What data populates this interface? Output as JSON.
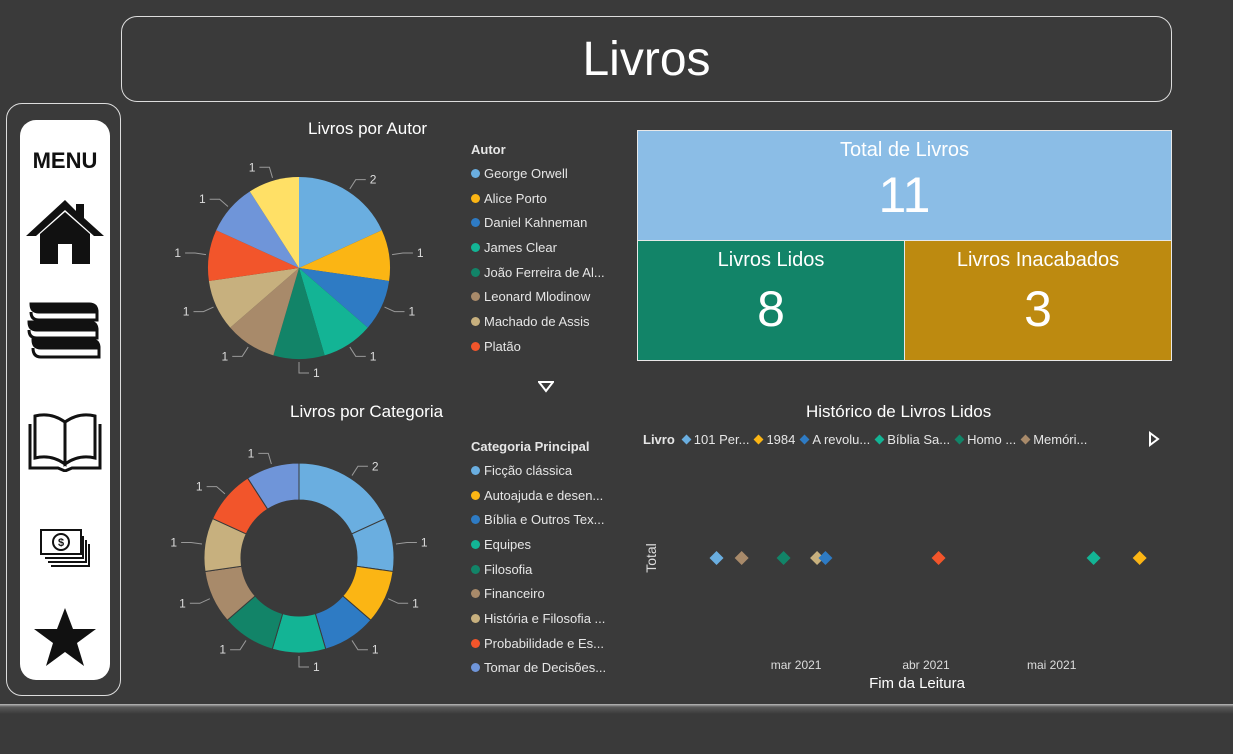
{
  "header": {
    "title": "Livros"
  },
  "menu": {
    "label": "MENU",
    "icons": [
      "home-icon",
      "books-stack-icon",
      "open-book-icon",
      "money-icon",
      "star-icon"
    ]
  },
  "pie_author": {
    "title": "Livros por Autor",
    "legend_title": "Autor",
    "legend_items": [
      {
        "label": "George Orwell",
        "color": "#6aaee0"
      },
      {
        "label": "Alice Porto",
        "color": "#fbb514"
      },
      {
        "label": "Daniel Kahneman",
        "color": "#2e7bc4"
      },
      {
        "label": "James Clear",
        "color": "#13b495"
      },
      {
        "label": "João Ferreira de Al...",
        "color": "#128468"
      },
      {
        "label": "Leonard Mlodinow",
        "color": "#a88a6a"
      },
      {
        "label": "Machado de Assis",
        "color": "#c7b07e"
      },
      {
        "label": "Platão",
        "color": "#f2552b"
      }
    ]
  },
  "donut_category": {
    "title": "Livros por Categoria",
    "legend_title": "Categoria Principal",
    "legend_items": [
      {
        "label": "Ficção clássica",
        "color": "#6aaee0"
      },
      {
        "label": "Autoajuda e desen...",
        "color": "#fbb514"
      },
      {
        "label": "Bíblia e Outros Tex...",
        "color": "#2e7bc4"
      },
      {
        "label": "Equipes",
        "color": "#13b495"
      },
      {
        "label": "Filosofia",
        "color": "#128468"
      },
      {
        "label": "Financeiro",
        "color": "#a88a6a"
      },
      {
        "label": "História e Filosofia ...",
        "color": "#c7b07e"
      },
      {
        "label": "Probabilidade e Es...",
        "color": "#f2552b"
      },
      {
        "label": "Tomar de Decisões...",
        "color": "#6f95d9"
      }
    ]
  },
  "cards": {
    "total": {
      "label": "Total de Livros",
      "value": "11",
      "color": "#8bbde6"
    },
    "read": {
      "label": "Livros Lidos",
      "value": "8",
      "color": "#128468"
    },
    "unfinished": {
      "label": "Livros Inacabados",
      "value": "3",
      "color": "#bd8a10"
    }
  },
  "history": {
    "title": "Histórico de Livros Lidos",
    "legend_title": "Livro",
    "legend_items": [
      {
        "label": "101 Per...",
        "color": "#6aaee0"
      },
      {
        "label": "1984",
        "color": "#fbb514"
      },
      {
        "label": "A revolu...",
        "color": "#2e7bc4"
      },
      {
        "label": "Bíblia Sa...",
        "color": "#13b495"
      },
      {
        "label": "Homo ...",
        "color": "#128468"
      },
      {
        "label": "Memóri...",
        "color": "#a88a6a"
      }
    ],
    "ylabel": "Total",
    "xlabel": "Fim da Leitura",
    "xticks": [
      "mar 2021",
      "abr 2021",
      "mai 2021"
    ]
  },
  "chart_data": [
    {
      "type": "pie",
      "title": "Livros por Autor",
      "categories": [
        "George Orwell",
        "Alice Porto",
        "Daniel Kahneman",
        "James Clear",
        "João Ferreira de Al...",
        "Leonard Mlodinow",
        "Machado de Assis",
        "Platão",
        "(not shown)",
        "(not shown)"
      ],
      "values": [
        2,
        1,
        1,
        1,
        1,
        1,
        1,
        1,
        1,
        1
      ],
      "colors": [
        "#6aaee0",
        "#fbb514",
        "#2e7bc4",
        "#13b495",
        "#128468",
        "#a88a6a",
        "#c7b07e",
        "#f2552b",
        "#6f95d9",
        "#ffe066"
      ]
    },
    {
      "type": "pie",
      "title": "Livros por Categoria",
      "categories": [
        "Ficção clássica",
        "(not shown)",
        "Autoajuda e desen...",
        "Bíblia e Outros Tex...",
        "Equipes",
        "Filosofia",
        "Financeiro",
        "História e Filosofia ...",
        "Probabilidade e Es...",
        "Tomar de Decisões..."
      ],
      "values": [
        2,
        1,
        1,
        1,
        1,
        1,
        1,
        1,
        1,
        1
      ],
      "colors": [
        "#6aaee0",
        "#6aaee0",
        "#fbb514",
        "#2e7bc4",
        "#13b495",
        "#128468",
        "#a88a6a",
        "#c7b07e",
        "#f2552b",
        "#6f95d9"
      ]
    },
    {
      "type": "scatter",
      "title": "Histórico de Livros Lidos",
      "xlabel": "Fim da Leitura",
      "ylabel": "Total",
      "x_range": [
        "2021-02-02",
        "2021-05-29"
      ],
      "points": [
        {
          "x": "2021-02-10",
          "y": 1,
          "color": "#6aaee0"
        },
        {
          "x": "2021-02-16",
          "y": 1,
          "color": "#a88a6a"
        },
        {
          "x": "2021-02-26",
          "y": 1,
          "color": "#128468"
        },
        {
          "x": "2021-03-06",
          "y": 1,
          "color": "#c7b07e"
        },
        {
          "x": "2021-03-08",
          "y": 1,
          "color": "#2e7bc4"
        },
        {
          "x": "2021-04-04",
          "y": 1,
          "color": "#f2552b"
        },
        {
          "x": "2021-05-11",
          "y": 1,
          "color": "#13b495"
        },
        {
          "x": "2021-05-22",
          "y": 1,
          "color": "#fbb514"
        }
      ]
    }
  ]
}
